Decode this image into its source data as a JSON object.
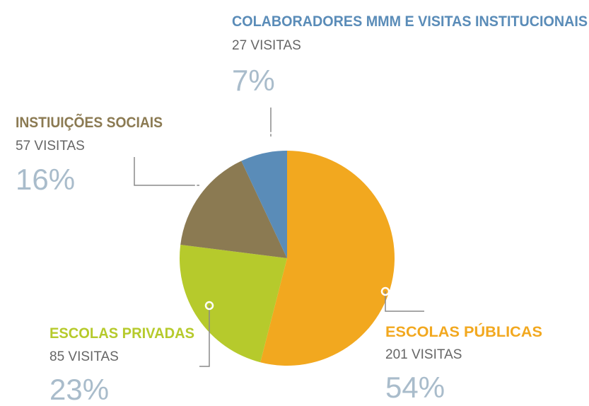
{
  "chart_data": {
    "type": "pie",
    "categories": [
      "ESCOLAS PÚBLICAS",
      "ESCOLAS PRIVADAS",
      "INSTIUIÇÕES SOCIAIS",
      "COLABORADORES MMM E VISITAS INSTITUCIONAIS"
    ],
    "values": [
      54,
      23,
      16,
      7
    ],
    "value_labels": [
      "54%",
      "23%",
      "16%",
      "7%"
    ],
    "visits": [
      "201 VISITAS",
      "85 VISITAS",
      "57 VISITAS",
      "27 VISITAS"
    ],
    "colors": [
      "#f2a81f",
      "#b6ca2c",
      "#8b7a52",
      "#5a8cb8"
    ]
  }
}
